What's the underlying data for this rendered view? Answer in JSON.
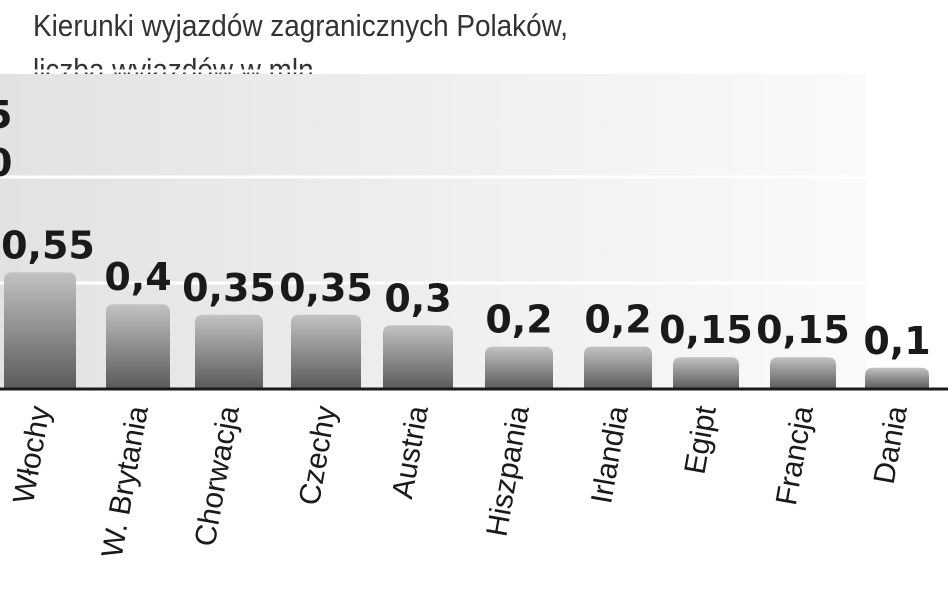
{
  "chart_data": {
    "type": "bar",
    "title": "Kierunki wyjazdów zagranicznych Polaków,",
    "subtitle": "liczba wyjazdów w mln",
    "categories": [
      "Włochy",
      "W. Brytania",
      "Chorwacja",
      "Czechy",
      "Austria",
      "Hiszpania",
      "Irlandia",
      "Egipt",
      "Francja",
      "Dania"
    ],
    "values": [
      0.55,
      0.4,
      0.35,
      0.35,
      0.3,
      0.2,
      0.2,
      0.15,
      0.15,
      0.1
    ],
    "value_labels": [
      "0,55",
      "0,4",
      "0,35",
      "0,35",
      "0,3",
      "0,2",
      "0,2",
      "0,15",
      "0,15",
      "0,1"
    ],
    "ylim": [
      0,
      1.5
    ],
    "grid": true,
    "legend": "none",
    "colors": {
      "bar_top": "#bdbdbd",
      "bar_bottom": "#5e5e5e",
      "band": "#ececec",
      "gridline": "#ffffff",
      "baseline": "#1a1a1a"
    }
  }
}
